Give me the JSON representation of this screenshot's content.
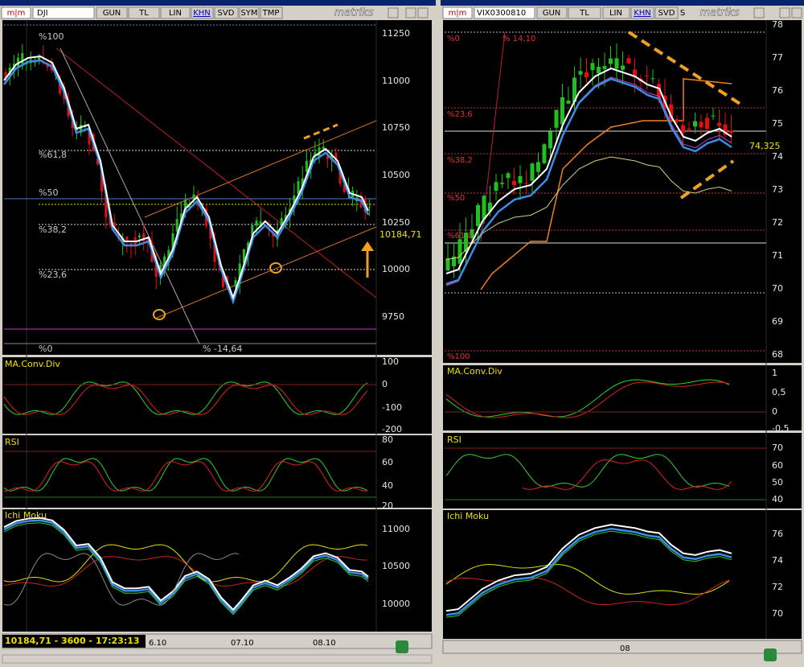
{
  "left_window": {
    "symbol": "DJI",
    "toolbar": [
      "GUN",
      "TL",
      "LIN",
      "KHN",
      "SVD",
      "SYM",
      "TMP"
    ],
    "brand": "matriks",
    "price_panel": {
      "axis": [
        "11250",
        "11000",
        "10750",
        "10500",
        "10250",
        "10000",
        "9750"
      ],
      "fib_levels": [
        "%100",
        "%61,8",
        "%50",
        "%38,2",
        "%23,6",
        "%0"
      ],
      "extension": "% -14,64",
      "last_price": "10184,71"
    },
    "macd": {
      "title": "MA.Conv.Div",
      "axis": [
        "100",
        "0",
        "-100",
        "-200"
      ]
    },
    "rsi": {
      "title": "RSI",
      "axis": [
        "80",
        "60",
        "40",
        "20"
      ]
    },
    "ichimoku": {
      "title": "Ichi Moku",
      "axis": [
        "11000",
        "10500",
        "10000"
      ]
    },
    "status": "10184,71 - 3600 - 17:23:13",
    "dates": [
      "6.10",
      "07.10",
      "08.10"
    ]
  },
  "right_window": {
    "symbol": "VIX0300810",
    "toolbar": [
      "GUN",
      "TL",
      "LIN",
      "KHN",
      "SVD",
      "S"
    ],
    "brand": "matriks",
    "price_panel": {
      "axis": [
        "78",
        "77",
        "76",
        "75",
        "74",
        "73",
        "72",
        "71",
        "70",
        "69",
        "68"
      ],
      "fib_levels": [
        "%0",
        "%23,6",
        "%38,2",
        "%50",
        "%61,8",
        "%100"
      ],
      "extension": "% 14,10",
      "last_price": "74,325"
    },
    "macd": {
      "title": "MA.Conv.Div",
      "axis": [
        "1",
        "0,5",
        "0",
        "-0,5"
      ]
    },
    "rsi": {
      "title": "RSI",
      "axis": [
        "70",
        "60",
        "50",
        "40"
      ]
    },
    "ichimoku": {
      "title": "Ichi Moku",
      "axis": [
        "76",
        "74",
        "72",
        "70"
      ]
    },
    "dates": [
      "08"
    ]
  }
}
